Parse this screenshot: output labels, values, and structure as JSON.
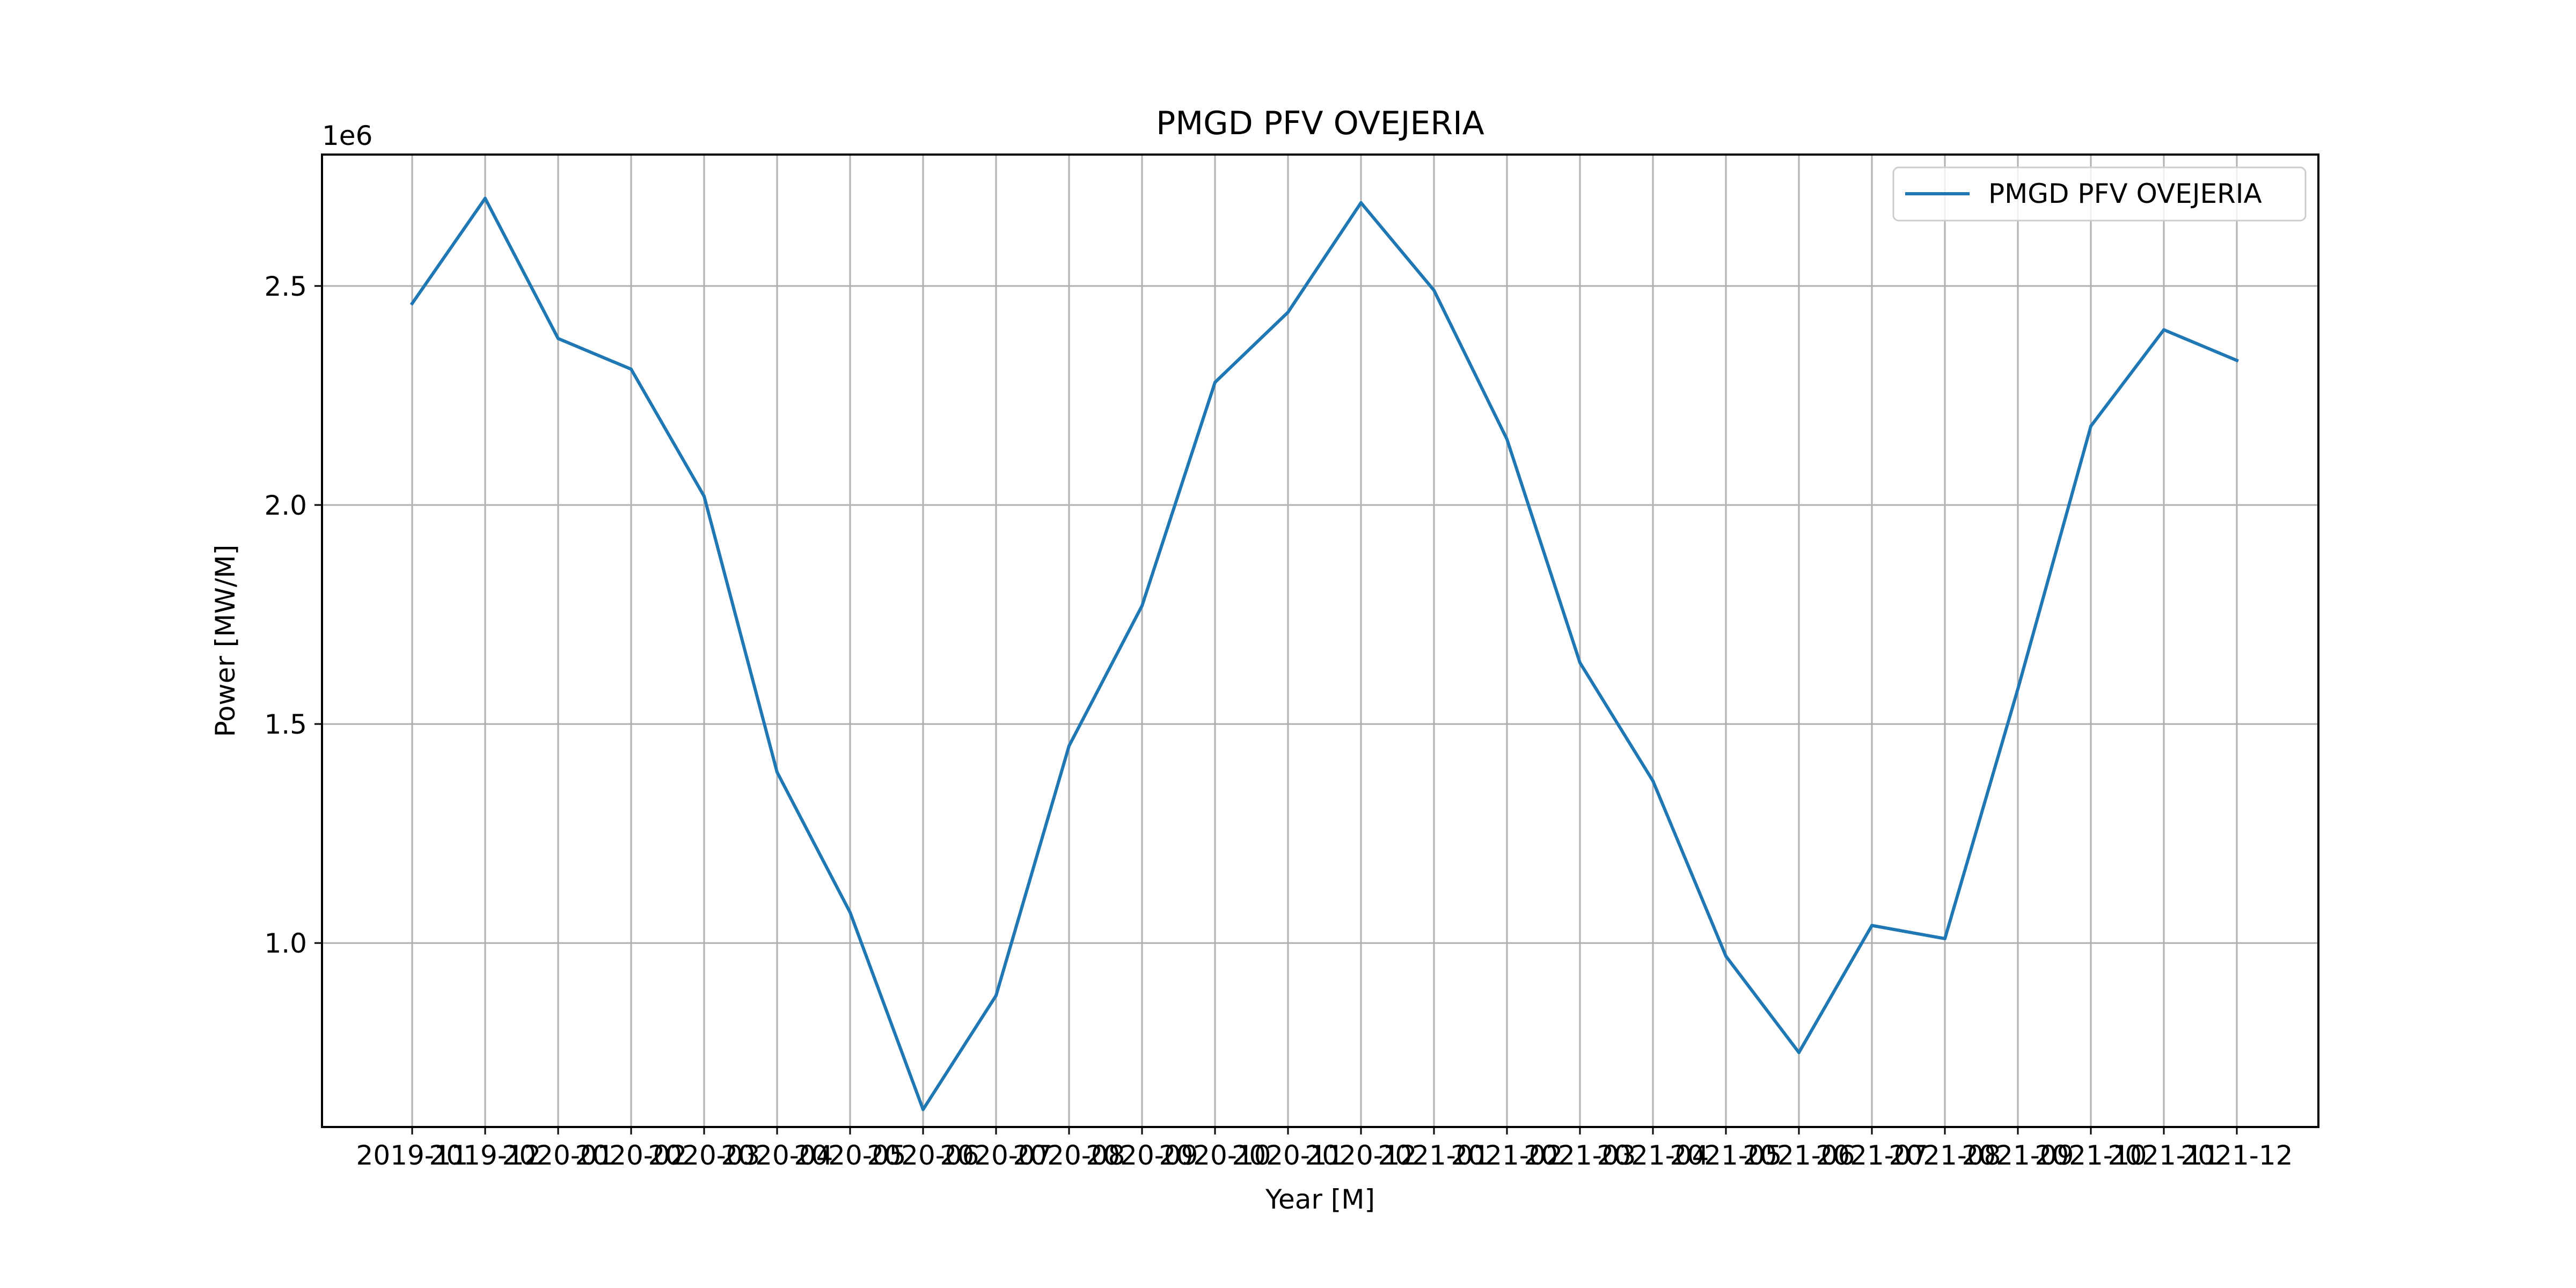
{
  "chart_data": {
    "type": "line",
    "title": "PMGD PFV OVEJERIA",
    "xlabel": "Year [M]",
    "ylabel": "Power [MW/M]",
    "y_offset_label": "1e6",
    "categories": [
      "2019-11",
      "2019-12",
      "2020-01",
      "2020-02",
      "2020-03",
      "2020-04",
      "2020-05",
      "2020-06",
      "2020-07",
      "2020-08",
      "2020-09",
      "2020-10",
      "2020-11",
      "2020-12",
      "2021-01",
      "2021-02",
      "2021-03",
      "2021-04",
      "2021-05",
      "2021-06",
      "2021-07",
      "2021-08",
      "2021-09",
      "2021-10",
      "2021-11",
      "2021-12"
    ],
    "series": [
      {
        "name": "PMGD PFV OVEJERIA",
        "color": "#1f77b4",
        "values": [
          2460000,
          2700000,
          2380000,
          2310000,
          2020000,
          1390000,
          1070000,
          620000,
          880000,
          1450000,
          1770000,
          2280000,
          2440000,
          2690000,
          2490000,
          2150000,
          1640000,
          1370000,
          970000,
          750000,
          1040000,
          1010000,
          1580000,
          2180000,
          2400000,
          2330000
        ]
      }
    ],
    "yticks": [
      1000000,
      1500000,
      2000000,
      2500000
    ],
    "ytick_labels": [
      "1.0",
      "1.5",
      "2.0",
      "2.5"
    ],
    "ylim": [
      580000,
      2800000
    ],
    "grid": true,
    "legend_position": "upper right"
  }
}
